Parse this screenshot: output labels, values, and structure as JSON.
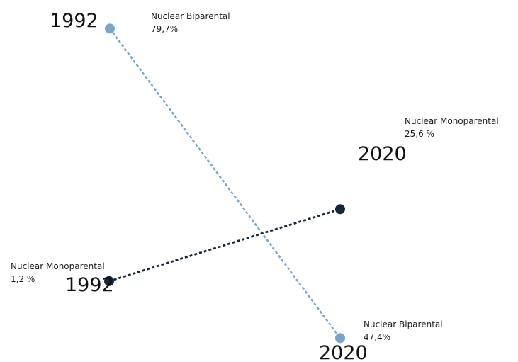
{
  "chart_data": {
    "type": "scatter",
    "title": "",
    "xlabel": "",
    "ylabel": "",
    "grid": false,
    "legend": "none",
    "series": [
      {
        "category": "Nuclear Biparental",
        "color": "#7aa3cc",
        "start": {
          "year": "1992",
          "value": 79.7,
          "label": "Nuclear Biparental",
          "value_text": "79,7%"
        },
        "end": {
          "year": "2020",
          "value": 47.4,
          "label": "Nuclear Biparental",
          "value_text": "47,4%"
        }
      },
      {
        "category": "Nuclear Monoparental",
        "color": "#16263a",
        "start": {
          "year": "1992",
          "value": 1.2,
          "label": "Nuclear Monoparental",
          "value_text": "1,2 %"
        },
        "end": {
          "year": "2020",
          "value": 25.6,
          "label": "Nuclear Monoparental",
          "value_text": "25,6 %"
        }
      }
    ]
  }
}
